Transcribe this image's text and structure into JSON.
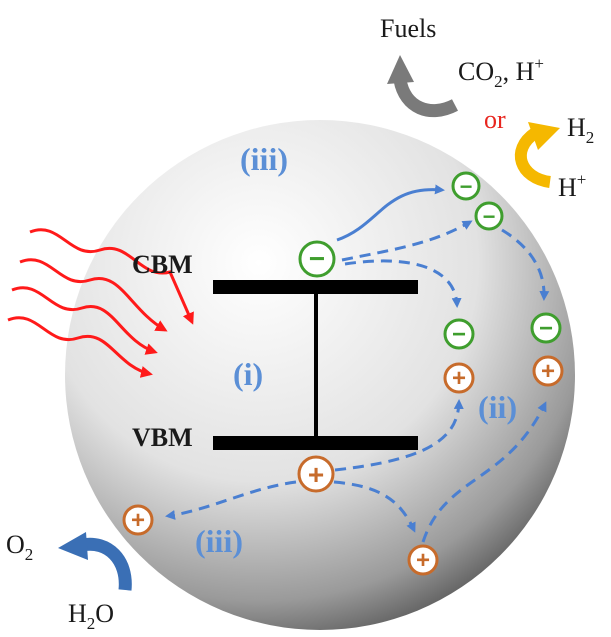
{
  "colors": {
    "electron": "#3f9e2e",
    "hole": "#c76b2b",
    "process": "#4a7fd1",
    "light": "#ff1a1a",
    "band": "#000000",
    "fuel_arrow": "#7a7a7a",
    "h2_arrow": "#f5b800",
    "o2_arrow": "#3a6fb5"
  },
  "bands": {
    "cbm": "CBM",
    "vbm": "VBM"
  },
  "steps": {
    "absorption": "(i)",
    "separation": "(ii)",
    "reaction_top": "(iii)",
    "reaction_bottom": "(iii)"
  },
  "charges": {
    "electron_sign": "−",
    "hole_sign": "+"
  },
  "reactions": {
    "fuels": "Fuels",
    "co2_base": "CO",
    "co2_sub": "2",
    "co2_tail": ", H",
    "co2_sup": "+",
    "or": "or",
    "h2_base": "H",
    "h2_sub": "2",
    "hplus_base": "H",
    "hplus_sup": "+",
    "o2_base": "O",
    "o2_sub": "2",
    "h2o_base": "H",
    "h2o_sub": "2",
    "h2o_tail": "O"
  },
  "icons": [
    "light-wave-icon",
    "curved-arrow-icon"
  ]
}
